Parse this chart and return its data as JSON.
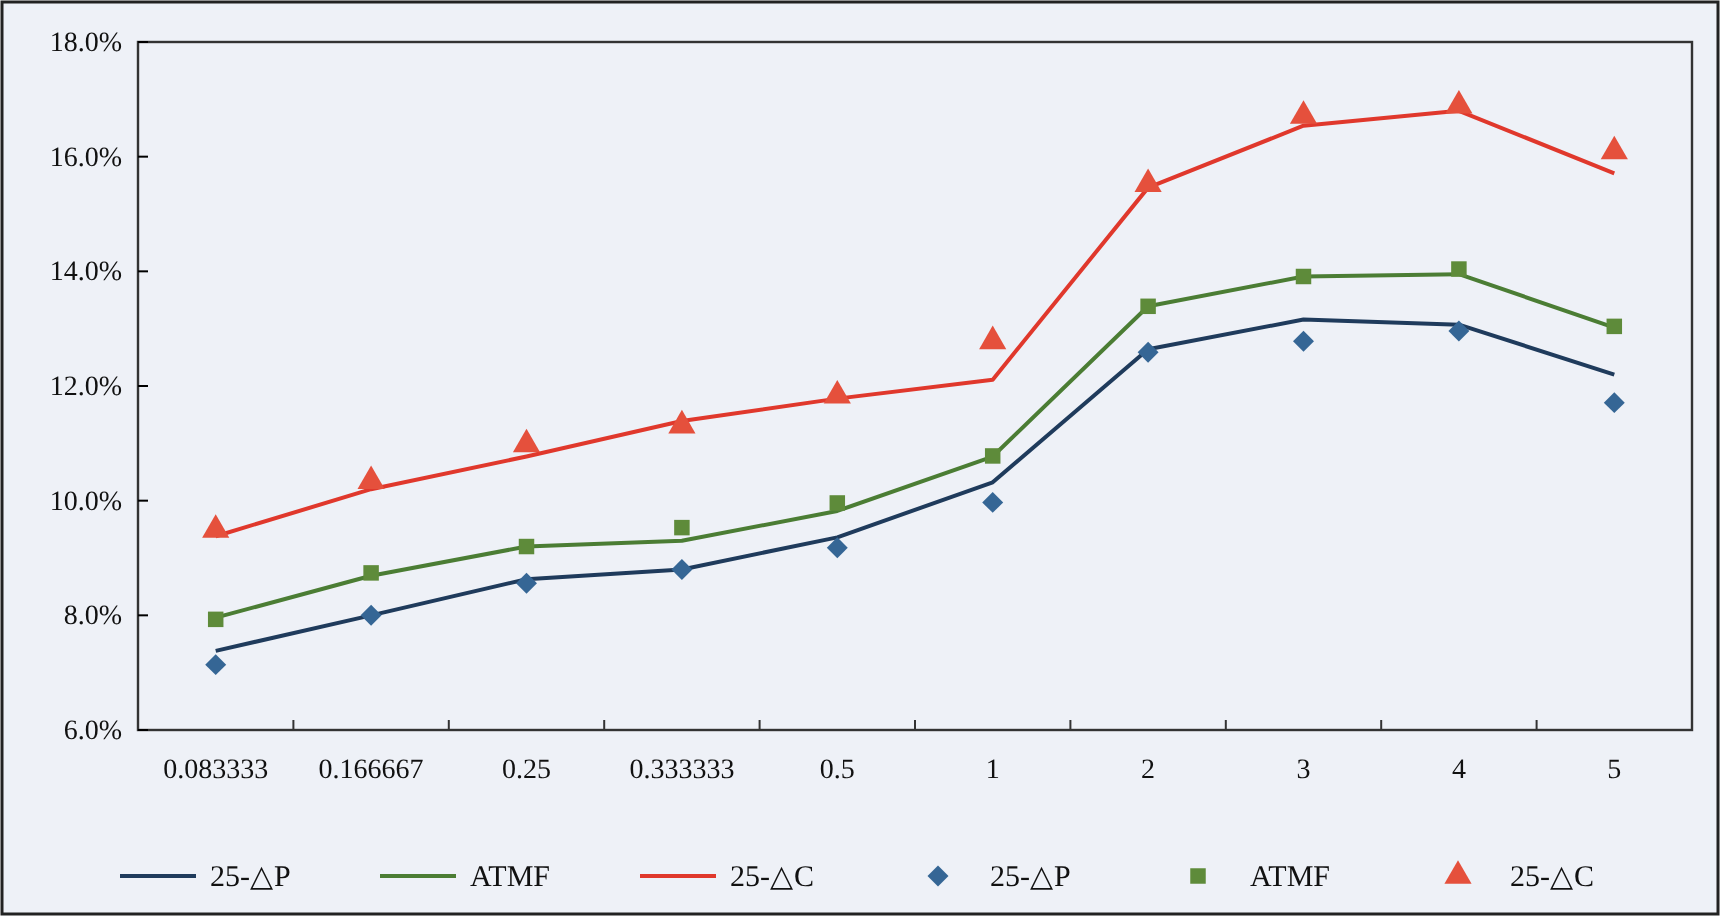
{
  "chart_data": {
    "type": "line",
    "categories": [
      "0.083333",
      "0.166667",
      "0.25",
      "0.333333",
      "0.5",
      "1",
      "2",
      "3",
      "4",
      "5"
    ],
    "ylim": [
      6,
      18
    ],
    "yticks": [
      {
        "value": 6,
        "label": "6.0%"
      },
      {
        "value": 8,
        "label": "8.0%"
      },
      {
        "value": 10,
        "label": "10.0%"
      },
      {
        "value": 12,
        "label": "12.0%"
      },
      {
        "value": 14,
        "label": "14.0%"
      },
      {
        "value": 16,
        "label": "16.0%"
      },
      {
        "value": 18,
        "label": "18.0%"
      }
    ],
    "grid": false,
    "legend": "bottom",
    "series": [
      {
        "name": "25-△P",
        "marker": "none",
        "color": "#1f3b5c",
        "values": [
          7.38,
          8.0,
          8.63,
          8.8,
          9.36,
          10.32,
          12.64,
          13.16,
          13.07,
          12.2
        ]
      },
      {
        "name": "ATMF",
        "marker": "none",
        "color": "#4b7d34",
        "values": [
          7.96,
          8.69,
          9.2,
          9.3,
          9.82,
          10.77,
          13.39,
          13.91,
          13.95,
          13.02
        ]
      },
      {
        "name": "25-△C",
        "marker": "none",
        "color": "#e0382c",
        "values": [
          9.38,
          10.2,
          10.77,
          11.39,
          11.78,
          12.11,
          15.46,
          16.54,
          16.8,
          15.71
        ]
      },
      {
        "name": "25-△P",
        "type": "scatter",
        "marker": "diamond",
        "color": "#356695",
        "values": [
          7.14,
          8.0,
          8.56,
          8.8,
          9.18,
          9.97,
          12.59,
          12.78,
          12.96,
          11.71
        ]
      },
      {
        "name": "ATMF",
        "type": "scatter",
        "marker": "square",
        "color": "#5e8b3a",
        "values": [
          7.93,
          8.74,
          9.2,
          9.53,
          9.96,
          10.78,
          13.39,
          13.91,
          14.04,
          13.04
        ]
      },
      {
        "name": "25-△C",
        "type": "scatter",
        "marker": "triangle",
        "color": "#e5503c",
        "values": [
          9.49,
          10.34,
          10.98,
          11.31,
          11.83,
          12.78,
          15.52,
          16.71,
          16.89,
          16.09
        ]
      }
    ]
  }
}
